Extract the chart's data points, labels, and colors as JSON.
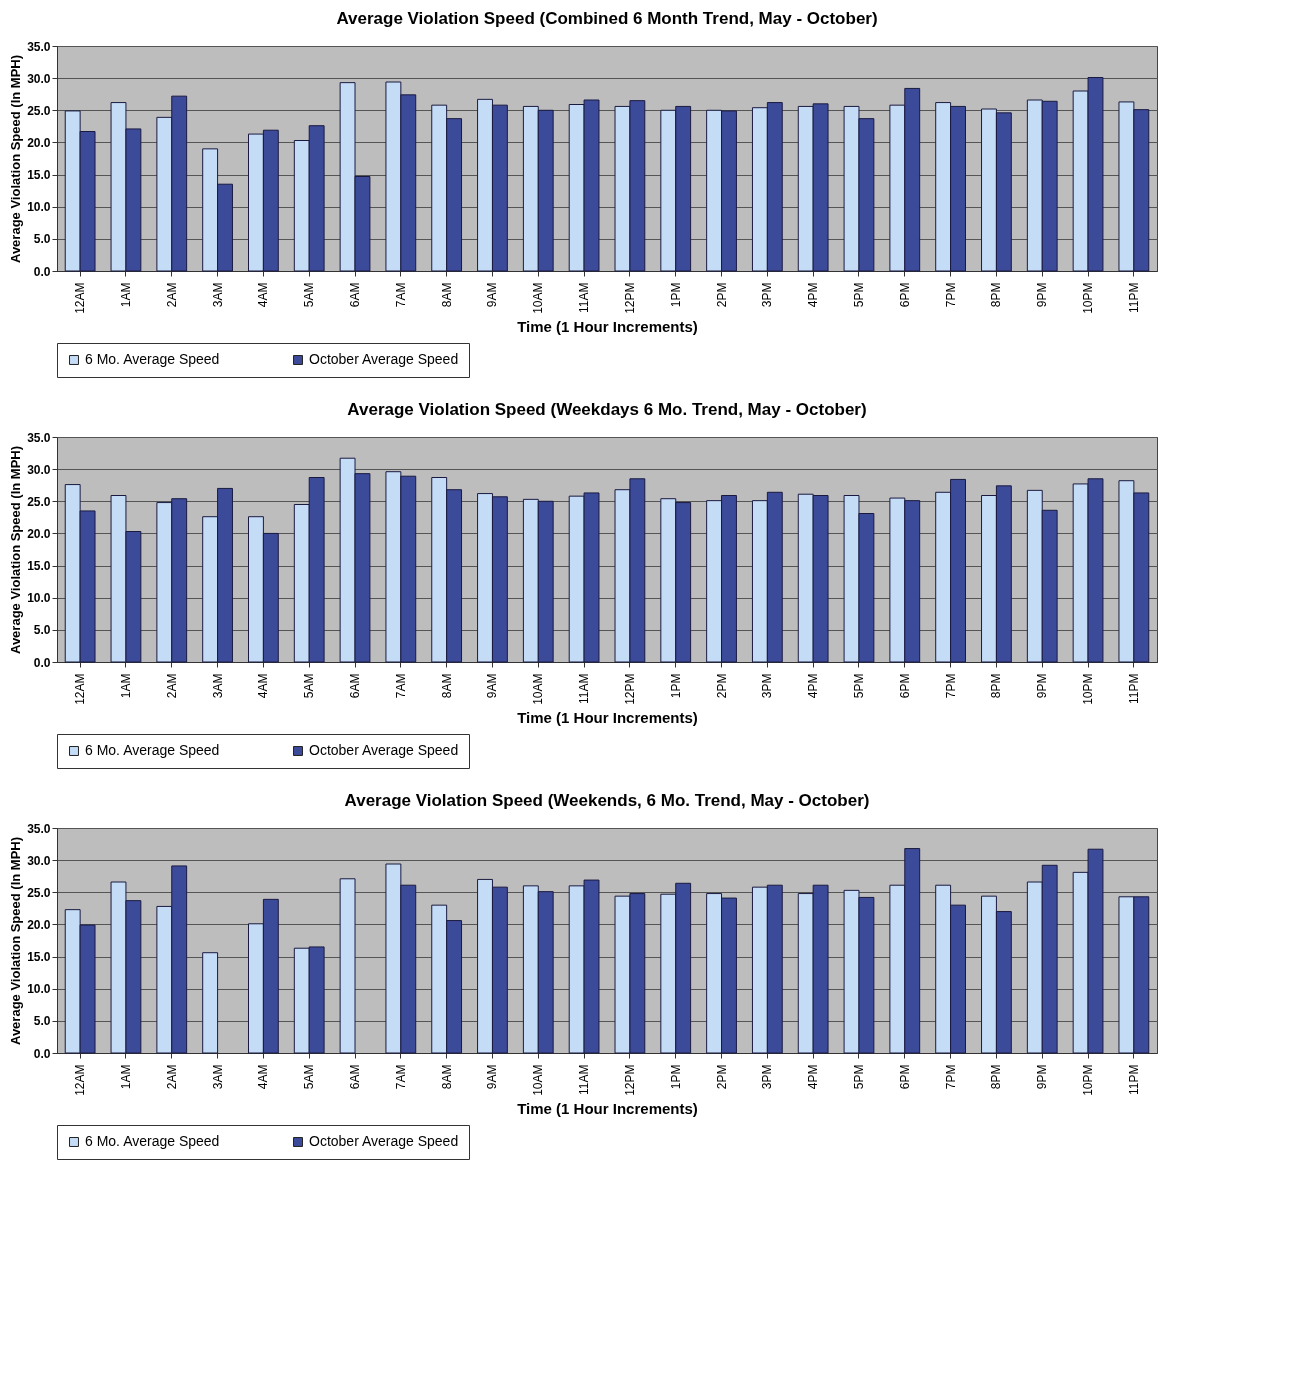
{
  "chart_data": [
    {
      "type": "bar",
      "title": "Average Violation Speed (Combined 6 Month Trend, May - October)",
      "xlabel": "Time (1 Hour Increments)",
      "ylabel": "Average Violation Speed (In MPH)",
      "categories": [
        "12AM",
        "1AM",
        "2AM",
        "3AM",
        "4AM",
        "5AM",
        "6AM",
        "7AM",
        "8AM",
        "9AM",
        "10AM",
        "11AM",
        "12PM",
        "1PM",
        "2PM",
        "3PM",
        "4PM",
        "5PM",
        "6PM",
        "7PM",
        "8PM",
        "9PM",
        "10PM",
        "11PM"
      ],
      "series": [
        {
          "name": "6 Mo. Average Speed",
          "color": "#c5dcf6",
          "values": [
            24.9,
            26.2,
            23.9,
            19.0,
            21.3,
            20.3,
            29.3,
            29.4,
            25.8,
            26.7,
            25.6,
            25.9,
            25.6,
            25.0,
            25.0,
            25.4,
            25.6,
            25.6,
            25.8,
            26.2,
            25.2,
            26.6,
            28.0,
            26.3
          ]
        },
        {
          "name": "October Average Speed",
          "color": "#3c4a9a",
          "values": [
            21.7,
            22.1,
            27.2,
            13.5,
            21.9,
            22.6,
            14.7,
            27.4,
            23.7,
            25.8,
            25.0,
            26.6,
            26.5,
            25.6,
            24.9,
            26.2,
            26.0,
            23.7,
            28.4,
            25.6,
            24.6,
            26.4,
            30.1,
            25.1
          ]
        }
      ],
      "ylim": [
        0,
        35
      ],
      "yticks": [
        {
          "value": 0,
          "label": "0.0"
        },
        {
          "value": 5,
          "label": "5.0"
        },
        {
          "value": 10,
          "label": "10.0"
        },
        {
          "value": 15,
          "label": "15.0"
        },
        {
          "value": 20,
          "label": "20.0"
        },
        {
          "value": 25,
          "label": "25.0"
        },
        {
          "value": 30,
          "label": "30.0"
        },
        {
          "value": 35,
          "label": "35.0"
        }
      ],
      "grid": "y",
      "legend": "bottom"
    },
    {
      "type": "bar",
      "title": "Average Violation Speed (Weekdays 6 Mo. Trend, May - October)",
      "xlabel": "Time (1 Hour Increments)",
      "ylabel": "Average Violation Speed (In MPH)",
      "categories": [
        "12AM",
        "1AM",
        "2AM",
        "3AM",
        "4AM",
        "5AM",
        "6AM",
        "7AM",
        "8AM",
        "9AM",
        "10AM",
        "11AM",
        "12PM",
        "1PM",
        "2PM",
        "3PM",
        "4PM",
        "5PM",
        "6PM",
        "7PM",
        "8PM",
        "9PM",
        "10PM",
        "11PM"
      ],
      "series": [
        {
          "name": "6 Mo. Average Speed",
          "color": "#c5dcf6",
          "values": [
            27.6,
            25.9,
            24.8,
            22.6,
            22.6,
            24.5,
            31.7,
            29.6,
            28.7,
            26.2,
            25.3,
            25.8,
            26.8,
            25.4,
            25.1,
            25.1,
            26.1,
            25.9,
            25.5,
            26.4,
            25.9,
            26.7,
            27.7,
            28.2
          ]
        },
        {
          "name": "October Average Speed",
          "color": "#3c4a9a",
          "values": [
            23.5,
            20.3,
            25.4,
            27.0,
            20.0,
            28.7,
            29.3,
            28.9,
            26.8,
            25.7,
            25.0,
            26.3,
            28.5,
            24.8,
            25.9,
            26.4,
            25.9,
            23.1,
            25.1,
            28.4,
            27.4,
            23.6,
            28.5,
            26.3
          ]
        }
      ],
      "ylim": [
        0,
        35
      ],
      "yticks": [
        {
          "value": 0,
          "label": "0.0"
        },
        {
          "value": 5,
          "label": "5.0"
        },
        {
          "value": 10,
          "label": "10.0"
        },
        {
          "value": 15,
          "label": "15.0"
        },
        {
          "value": 20,
          "label": "20.0"
        },
        {
          "value": 25,
          "label": "25.0"
        },
        {
          "value": 30,
          "label": "30.0"
        },
        {
          "value": 35,
          "label": "35.0"
        }
      ],
      "grid": "y",
      "legend": "bottom"
    },
    {
      "type": "bar",
      "title": "Average Violation Speed (Weekends, 6 Mo. Trend, May - October)",
      "xlabel": "Time (1 Hour Increments)",
      "ylabel": "Average Violation Speed (In MPH)",
      "categories": [
        "12AM",
        "1AM",
        "2AM",
        "3AM",
        "4AM",
        "5AM",
        "6AM",
        "7AM",
        "8AM",
        "9AM",
        "10AM",
        "11AM",
        "12PM",
        "1PM",
        "2PM",
        "3PM",
        "4PM",
        "5PM",
        "6PM",
        "7PM",
        "8PM",
        "9PM",
        "10PM",
        "11PM"
      ],
      "series": [
        {
          "name": "6 Mo. Average Speed",
          "color": "#c5dcf6",
          "values": [
            22.3,
            26.6,
            22.8,
            15.6,
            20.1,
            16.3,
            27.1,
            29.4,
            23.0,
            27.0,
            26.0,
            26.0,
            24.4,
            24.7,
            24.8,
            25.8,
            24.8,
            25.3,
            26.1,
            26.1,
            24.4,
            26.6,
            28.1,
            24.3
          ]
        },
        {
          "name": "October Average Speed",
          "color": "#3c4a9a",
          "values": [
            19.9,
            23.7,
            29.1,
            null,
            23.9,
            16.5,
            null,
            26.1,
            20.6,
            25.8,
            25.1,
            26.9,
            24.8,
            26.4,
            24.1,
            26.1,
            26.1,
            24.2,
            31.8,
            23.0,
            22.0,
            29.2,
            31.7,
            24.3
          ]
        }
      ],
      "ylim": [
        0,
        35
      ],
      "yticks": [
        {
          "value": 0,
          "label": "0.0"
        },
        {
          "value": 5,
          "label": "5.0"
        },
        {
          "value": 10,
          "label": "10.0"
        },
        {
          "value": 15,
          "label": "15.0"
        },
        {
          "value": 20,
          "label": "20.0"
        },
        {
          "value": 25,
          "label": "25.0"
        },
        {
          "value": 30,
          "label": "30.0"
        },
        {
          "value": 35,
          "label": "35.0"
        }
      ],
      "grid": "y",
      "legend": "bottom"
    }
  ]
}
